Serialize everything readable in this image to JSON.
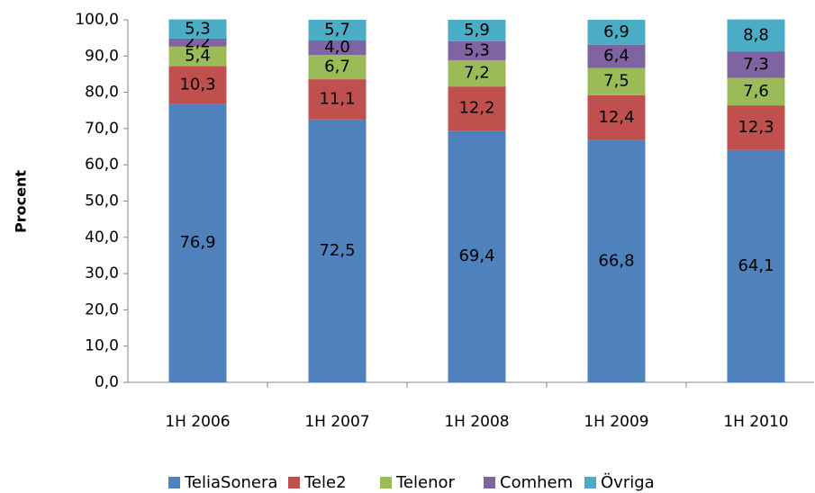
{
  "chart_data": {
    "type": "stacked_bar",
    "ylabel": "Procent",
    "categories": [
      "1H 2006",
      "1H 2007",
      "1H 2008",
      "1H 2009",
      "1H 2010"
    ],
    "series": [
      {
        "name": "TeliaSonera",
        "color": "#4f81bd",
        "values": [
          76.9,
          72.5,
          69.4,
          66.8,
          64.1
        ],
        "value_labels": [
          "76,9",
          "72,5",
          "69,4",
          "66,8",
          "64,1"
        ]
      },
      {
        "name": "Tele2",
        "color": "#c0504d",
        "values": [
          10.3,
          11.1,
          12.2,
          12.4,
          12.3
        ],
        "value_labels": [
          "10,3",
          "11,1",
          "12,2",
          "12,4",
          "12,3"
        ]
      },
      {
        "name": "Telenor",
        "color": "#9bbb59",
        "values": [
          5.4,
          6.7,
          7.2,
          7.5,
          7.6
        ],
        "value_labels": [
          "5,4",
          "6,7",
          "7,2",
          "7,5",
          "7,6"
        ]
      },
      {
        "name": "Comhem",
        "color": "#8064a2",
        "values": [
          2.2,
          4.0,
          5.3,
          6.4,
          7.3
        ],
        "value_labels": [
          "2,2",
          "4,0",
          "5,3",
          "6,4",
          "7,3"
        ]
      },
      {
        "name": "Övriga",
        "color": "#4bacc6",
        "values": [
          5.3,
          5.7,
          5.9,
          6.9,
          8.8
        ],
        "value_labels": [
          "5,3",
          "5,7",
          "5,9",
          "6,9",
          "8,8"
        ]
      }
    ],
    "ylim": [
      0,
      100
    ],
    "yticks": [
      {
        "value": 0,
        "label": "0,0"
      },
      {
        "value": 10,
        "label": "10,0"
      },
      {
        "value": 20,
        "label": "20,0"
      },
      {
        "value": 30,
        "label": "30,0"
      },
      {
        "value": 40,
        "label": "40,0"
      },
      {
        "value": 50,
        "label": "50,0"
      },
      {
        "value": 60,
        "label": "60,0"
      },
      {
        "value": 70,
        "label": "70,0"
      },
      {
        "value": 80,
        "label": "80,0"
      },
      {
        "value": 90,
        "label": "90,0"
      },
      {
        "value": 100,
        "label": "100,0"
      }
    ],
    "legend": "bottom"
  }
}
